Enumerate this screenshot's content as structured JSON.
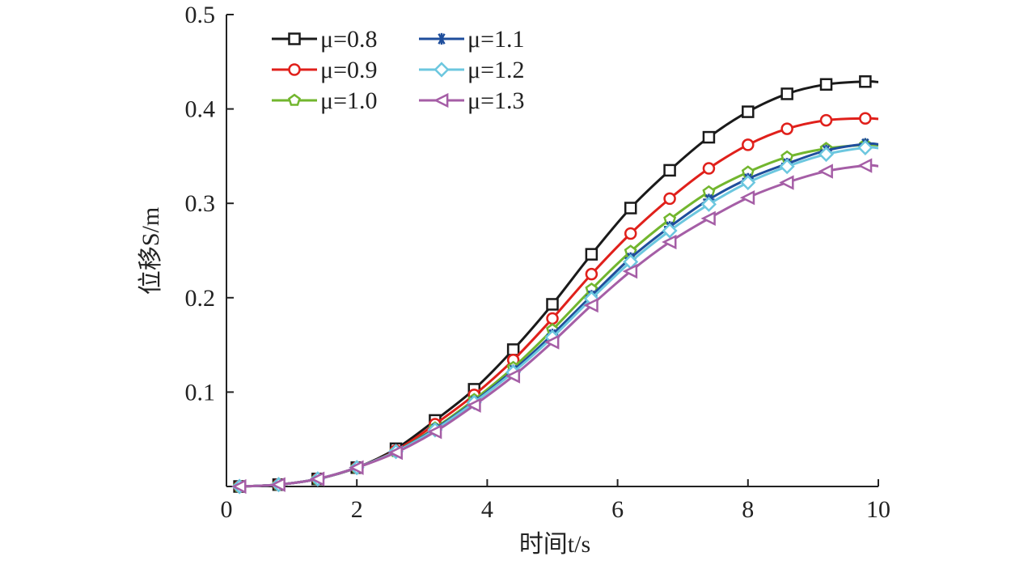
{
  "chart_data": {
    "type": "line",
    "title": "",
    "xlabel": "时间t/s",
    "ylabel": "位移S/m",
    "xlim": [
      0,
      10
    ],
    "ylim": [
      0,
      0.5
    ],
    "xticks": [
      0,
      2,
      4,
      6,
      8,
      10
    ],
    "xtick_labels": [
      "0",
      "2",
      "4",
      "6",
      "8",
      "10"
    ],
    "yticks": [
      0.1,
      0.2,
      0.3,
      0.4,
      0.5
    ],
    "ytick_labels": [
      "0.1",
      "0.2",
      "0.3",
      "0.4",
      "0.5"
    ],
    "grid": false,
    "legend_position": "top-left",
    "x": [
      0.2,
      0.8,
      1.4,
      2.0,
      2.6,
      3.2,
      3.8,
      4.4,
      5.0,
      5.6,
      6.2,
      6.8,
      7.4,
      8.0,
      8.6,
      9.2,
      9.8
    ],
    "series": [
      {
        "name": "μ=0.8",
        "color": "#1a1a1a",
        "marker": "square",
        "values": [
          0.0,
          0.002,
          0.008,
          0.02,
          0.04,
          0.07,
          0.103,
          0.145,
          0.193,
          0.246,
          0.295,
          0.335,
          0.37,
          0.397,
          0.416,
          0.426,
          0.429
        ]
      },
      {
        "name": "μ=0.9",
        "color": "#e0201b",
        "marker": "circle",
        "values": [
          0.0,
          0.002,
          0.008,
          0.02,
          0.038,
          0.066,
          0.097,
          0.134,
          0.178,
          0.225,
          0.268,
          0.305,
          0.337,
          0.362,
          0.379,
          0.388,
          0.39
        ]
      },
      {
        "name": "μ=1.0",
        "color": "#72b62e",
        "marker": "pentagon",
        "values": [
          0.0,
          0.002,
          0.008,
          0.02,
          0.037,
          0.062,
          0.092,
          0.126,
          0.166,
          0.209,
          0.249,
          0.283,
          0.312,
          0.333,
          0.349,
          0.358,
          0.362
        ]
      },
      {
        "name": "μ=1.1",
        "color": "#1f4e9c",
        "marker": "asterisk",
        "values": [
          0.0,
          0.002,
          0.008,
          0.02,
          0.037,
          0.061,
          0.09,
          0.123,
          0.161,
          0.202,
          0.242,
          0.275,
          0.304,
          0.326,
          0.342,
          0.356,
          0.363
        ]
      },
      {
        "name": "μ=1.2",
        "color": "#6cc7df",
        "marker": "diamond",
        "values": [
          0.0,
          0.002,
          0.008,
          0.02,
          0.037,
          0.06,
          0.089,
          0.121,
          0.158,
          0.199,
          0.238,
          0.271,
          0.299,
          0.322,
          0.339,
          0.352,
          0.359
        ]
      },
      {
        "name": "μ=1.3",
        "color": "#a55ea6",
        "marker": "triangle-left",
        "values": [
          0.0,
          0.002,
          0.008,
          0.02,
          0.036,
          0.058,
          0.086,
          0.117,
          0.153,
          0.192,
          0.228,
          0.259,
          0.284,
          0.306,
          0.322,
          0.334,
          0.34
        ]
      }
    ]
  }
}
